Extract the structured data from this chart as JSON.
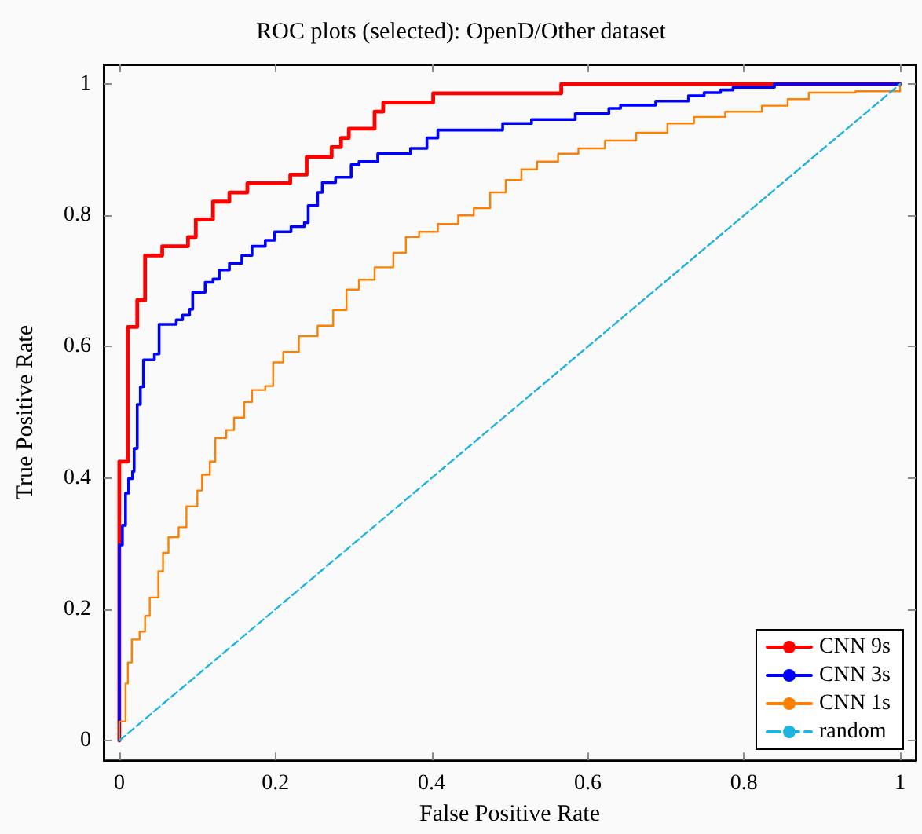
{
  "chart_data": {
    "type": "step",
    "title": "ROC plots (selected): OpenD/Other dataset",
    "xlabel": "False Positive Rate",
    "ylabel": "True Positive Rate",
    "xlim": [
      -0.02,
      1.02
    ],
    "ylim": [
      -0.03,
      1.03
    ],
    "xticks": [
      0,
      0.2,
      0.4,
      0.6,
      0.8,
      1
    ],
    "yticks": [
      0,
      0.2,
      0.4,
      0.6,
      0.8,
      1
    ],
    "grid": false,
    "legend": "bottom right",
    "marker": "none",
    "series": [
      {
        "name": "CNN 9s",
        "color": "#ff0000",
        "x": [
          0,
          0,
          0.011,
          0.023,
          0.033,
          0.055,
          0.088,
          0.098,
          0.12,
          0.141,
          0.164,
          0.219,
          0.24,
          0.272,
          0.284,
          0.294,
          0.327,
          0.338,
          0.402,
          0.566,
          1
        ],
        "values": [
          0,
          0.425,
          0.63,
          0.671,
          0.739,
          0.753,
          0.767,
          0.794,
          0.821,
          0.835,
          0.849,
          0.862,
          0.889,
          0.904,
          0.918,
          0.932,
          0.958,
          0.972,
          0.986,
          1,
          1
        ]
      },
      {
        "name": "CNN 3s",
        "color": "#0000ff",
        "x": [
          0,
          0,
          0.004,
          0.008,
          0.012,
          0.017,
          0.019,
          0.023,
          0.027,
          0.031,
          0.045,
          0.051,
          0.073,
          0.081,
          0.09,
          0.094,
          0.11,
          0.12,
          0.128,
          0.141,
          0.157,
          0.17,
          0.187,
          0.199,
          0.22,
          0.237,
          0.242,
          0.254,
          0.26,
          0.277,
          0.297,
          0.307,
          0.331,
          0.373,
          0.394,
          0.408,
          0.491,
          0.528,
          0.584,
          0.627,
          0.642,
          0.687,
          0.729,
          0.749,
          0.77,
          0.786,
          0.839,
          1
        ],
        "values": [
          0,
          0.298,
          0.328,
          0.377,
          0.399,
          0.41,
          0.445,
          0.512,
          0.539,
          0.58,
          0.589,
          0.634,
          0.641,
          0.648,
          0.657,
          0.683,
          0.698,
          0.703,
          0.717,
          0.727,
          0.739,
          0.753,
          0.762,
          0.775,
          0.783,
          0.789,
          0.815,
          0.835,
          0.85,
          0.858,
          0.877,
          0.882,
          0.894,
          0.902,
          0.918,
          0.93,
          0.94,
          0.946,
          0.955,
          0.963,
          0.968,
          0.974,
          0.982,
          0.987,
          0.991,
          0.995,
          1,
          1
        ]
      },
      {
        "name": "CNN 1s",
        "color": "#ff8000",
        "x": [
          0,
          0,
          0.008,
          0.011,
          0.016,
          0.026,
          0.033,
          0.039,
          0.05,
          0.056,
          0.063,
          0.076,
          0.086,
          0.1,
          0.106,
          0.116,
          0.123,
          0.137,
          0.147,
          0.16,
          0.17,
          0.187,
          0.197,
          0.21,
          0.23,
          0.254,
          0.274,
          0.291,
          0.307,
          0.327,
          0.351,
          0.367,
          0.384,
          0.408,
          0.434,
          0.454,
          0.475,
          0.495,
          0.515,
          0.535,
          0.562,
          0.588,
          0.622,
          0.662,
          0.702,
          0.736,
          0.776,
          0.823,
          0.856,
          0.883,
          0.943,
          1,
          1
        ],
        "values": [
          0,
          0.029,
          0.087,
          0.119,
          0.154,
          0.166,
          0.19,
          0.218,
          0.258,
          0.286,
          0.31,
          0.325,
          0.357,
          0.381,
          0.405,
          0.425,
          0.461,
          0.473,
          0.492,
          0.516,
          0.534,
          0.54,
          0.576,
          0.592,
          0.616,
          0.632,
          0.656,
          0.687,
          0.702,
          0.721,
          0.743,
          0.767,
          0.775,
          0.787,
          0.8,
          0.811,
          0.835,
          0.854,
          0.87,
          0.882,
          0.894,
          0.902,
          0.914,
          0.926,
          0.94,
          0.95,
          0.958,
          0.967,
          0.977,
          0.987,
          0.989,
          0.992,
          1
        ]
      },
      {
        "name": "random",
        "color": "#1fb3e0",
        "type": "line",
        "line_style": "dashed",
        "x": [
          0,
          1
        ],
        "values": [
          0,
          1
        ]
      }
    ]
  }
}
